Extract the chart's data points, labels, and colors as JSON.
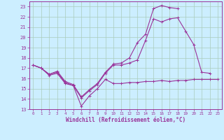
{
  "bg_color": "#cceeff",
  "grid_color": "#aaccbb",
  "line_color": "#993399",
  "xlabel": "Windchill (Refroidissement éolien,°C)",
  "xlim": [
    -0.5,
    23.5
  ],
  "ylim": [
    13,
    23.5
  ],
  "yticks": [
    13,
    14,
    15,
    16,
    17,
    18,
    19,
    20,
    21,
    22,
    23
  ],
  "xticks": [
    0,
    1,
    2,
    3,
    4,
    5,
    6,
    7,
    8,
    9,
    10,
    11,
    12,
    13,
    14,
    15,
    16,
    17,
    18,
    19,
    20,
    21,
    22,
    23
  ],
  "line1_x": [
    0,
    1,
    2,
    3,
    4,
    5,
    6,
    7,
    8,
    9,
    10,
    11,
    12,
    13,
    14,
    15,
    16,
    17,
    18,
    19,
    20,
    21,
    22,
    23
  ],
  "line1_y": [
    17.3,
    17.0,
    16.3,
    16.5,
    15.5,
    15.3,
    13.3,
    14.3,
    15.0,
    15.9,
    15.5,
    15.5,
    15.6,
    15.6,
    15.7,
    15.7,
    15.8,
    15.7,
    15.8,
    15.8,
    15.9,
    15.9,
    15.9,
    15.9
  ],
  "line2_x": [
    0,
    1,
    2,
    3,
    4,
    5,
    6,
    7,
    8,
    9,
    10,
    11,
    12,
    13,
    14,
    15,
    16,
    17,
    18,
    19,
    20,
    21,
    22
  ],
  "line2_y": [
    17.3,
    17.0,
    16.4,
    16.6,
    15.6,
    15.3,
    14.1,
    14.8,
    15.4,
    16.5,
    17.3,
    17.3,
    17.5,
    17.8,
    19.7,
    21.8,
    21.5,
    21.8,
    21.9,
    20.6,
    19.3,
    16.6,
    16.5
  ],
  "line3_x": [
    0,
    1,
    2,
    3,
    4,
    5,
    6,
    7,
    8,
    9,
    10,
    11,
    12,
    13,
    14,
    15,
    16,
    17,
    18
  ],
  "line3_y": [
    17.3,
    17.0,
    16.4,
    16.7,
    15.7,
    15.4,
    14.2,
    14.9,
    15.5,
    16.6,
    17.4,
    17.5,
    18.0,
    19.5,
    20.3,
    22.8,
    23.1,
    22.9,
    22.8
  ]
}
